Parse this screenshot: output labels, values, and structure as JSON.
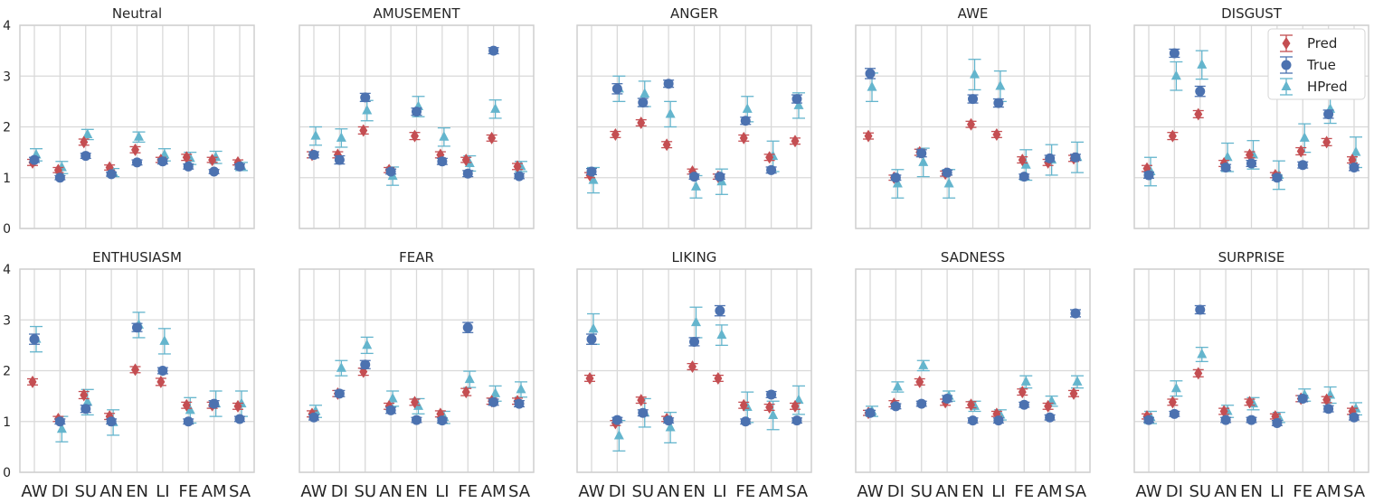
{
  "chart_data": {
    "type": "scatter",
    "layout": "2x5 grid of error-bar panels",
    "categories": [
      "AW",
      "DI",
      "SU",
      "AN",
      "EN",
      "LI",
      "FE",
      "AM",
      "SA"
    ],
    "ylim": [
      0,
      4
    ],
    "yticks": [
      0,
      1,
      2,
      3,
      4
    ],
    "grid": true,
    "legend": {
      "placement": "top-right",
      "panel": "DISGUST",
      "entries": [
        "Pred",
        "True",
        "HPred"
      ]
    },
    "series_style": {
      "Pred": {
        "color": "#c44e52",
        "marker": "diamond"
      },
      "True": {
        "color": "#4c72b0",
        "marker": "circle"
      },
      "HPred": {
        "color": "#64b5cd",
        "marker": "triangle"
      }
    },
    "panels": [
      {
        "title": "Neutral",
        "series": [
          {
            "name": "Pred",
            "values": [
              1.3,
              1.15,
              1.7,
              1.2,
              1.55,
              1.35,
              1.4,
              1.35,
              1.3
            ],
            "errors": [
              0.06,
              0.05,
              0.06,
              0.05,
              0.06,
              0.05,
              0.06,
              0.05,
              0.05
            ]
          },
          {
            "name": "True",
            "values": [
              1.35,
              1.0,
              1.43,
              1.07,
              1.3,
              1.32,
              1.22,
              1.12,
              1.22
            ],
            "errors": [
              0.05,
              0.04,
              0.05,
              0.04,
              0.05,
              0.05,
              0.05,
              0.04,
              0.05
            ]
          },
          {
            "name": "HPred",
            "values": [
              1.45,
              1.2,
              1.85,
              1.1,
              1.8,
              1.45,
              1.38,
              1.4,
              1.22
            ],
            "errors": [
              0.12,
              0.12,
              0.1,
              0.08,
              0.1,
              0.12,
              0.12,
              0.12,
              0.08
            ]
          }
        ]
      },
      {
        "title": "AMUSEMENT",
        "series": [
          {
            "name": "Pred",
            "values": [
              1.45,
              1.45,
              1.93,
              1.15,
              1.82,
              1.45,
              1.35,
              1.78,
              1.22
            ],
            "errors": [
              0.06,
              0.06,
              0.07,
              0.05,
              0.07,
              0.06,
              0.05,
              0.06,
              0.06
            ]
          },
          {
            "name": "True",
            "values": [
              1.45,
              1.35,
              2.58,
              1.12,
              2.3,
              1.32,
              1.08,
              3.5,
              1.03
            ],
            "errors": [
              0.06,
              0.08,
              0.08,
              0.05,
              0.07,
              0.06,
              0.06,
              0.06,
              0.05
            ]
          },
          {
            "name": "HPred",
            "values": [
              1.82,
              1.78,
              2.32,
              1.03,
              2.4,
              1.8,
              1.28,
              2.35,
              1.22
            ],
            "errors": [
              0.18,
              0.18,
              0.2,
              0.18,
              0.2,
              0.18,
              0.15,
              0.18,
              0.1
            ]
          }
        ]
      },
      {
        "title": "ANGER",
        "series": [
          {
            "name": "Pred",
            "values": [
              1.05,
              1.85,
              2.08,
              1.65,
              1.12,
              1.02,
              1.78,
              1.4,
              1.72
            ],
            "errors": [
              0.05,
              0.06,
              0.06,
              0.06,
              0.05,
              0.05,
              0.06,
              0.06,
              0.06
            ]
          },
          {
            "name": "True",
            "values": [
              1.12,
              2.75,
              2.48,
              2.85,
              1.02,
              1.02,
              2.12,
              1.15,
              2.55
            ],
            "errors": [
              0.06,
              0.1,
              0.08,
              0.07,
              0.05,
              0.05,
              0.07,
              0.06,
              0.08
            ]
          },
          {
            "name": "HPred",
            "values": [
              0.95,
              2.75,
              2.65,
              2.25,
              0.82,
              0.92,
              2.35,
              1.42,
              2.42
            ],
            "errors": [
              0.25,
              0.25,
              0.25,
              0.25,
              0.22,
              0.25,
              0.25,
              0.3,
              0.25
            ]
          }
        ]
      },
      {
        "title": "AWE",
        "series": [
          {
            "name": "Pred",
            "values": [
              1.82,
              1.0,
              1.5,
              1.08,
              2.05,
              1.85,
              1.35,
              1.3,
              1.38
            ],
            "errors": [
              0.06,
              0.05,
              0.06,
              0.05,
              0.06,
              0.06,
              0.06,
              0.06,
              0.06
            ]
          },
          {
            "name": "True",
            "values": [
              3.05,
              1.0,
              1.48,
              1.1,
              2.55,
              2.47,
              1.02,
              1.38,
              1.4
            ],
            "errors": [
              0.1,
              0.05,
              0.07,
              0.05,
              0.08,
              0.08,
              0.05,
              0.06,
              0.06
            ]
          },
          {
            "name": "HPred",
            "values": [
              2.78,
              0.88,
              1.3,
              0.88,
              3.03,
              2.8,
              1.25,
              1.35,
              1.4
            ],
            "errors": [
              0.28,
              0.28,
              0.28,
              0.28,
              0.3,
              0.3,
              0.3,
              0.3,
              0.3
            ]
          }
        ]
      },
      {
        "title": "DISGUST",
        "series": [
          {
            "name": "Pred",
            "values": [
              1.18,
              1.82,
              2.25,
              1.28,
              1.45,
              1.05,
              1.52,
              1.7,
              1.35
            ],
            "errors": [
              0.06,
              0.07,
              0.07,
              0.06,
              0.06,
              0.05,
              0.07,
              0.07,
              0.06
            ]
          },
          {
            "name": "True",
            "values": [
              1.05,
              3.45,
              2.7,
              1.2,
              1.28,
              1.0,
              1.25,
              2.25,
              1.2
            ],
            "errors": [
              0.06,
              0.08,
              0.1,
              0.06,
              0.06,
              0.05,
              0.06,
              0.08,
              0.06
            ]
          },
          {
            "name": "HPred",
            "values": [
              1.12,
              3.0,
              3.22,
              1.4,
              1.45,
              1.05,
              1.78,
              2.35,
              1.5
            ],
            "errors": [
              0.28,
              0.28,
              0.28,
              0.28,
              0.28,
              0.28,
              0.28,
              0.28,
              0.3
            ]
          }
        ]
      },
      {
        "title": "ENTHUSIASM",
        "series": [
          {
            "name": "Pred",
            "values": [
              1.78,
              1.05,
              1.52,
              1.1,
              2.02,
              1.78,
              1.32,
              1.32,
              1.3
            ],
            "errors": [
              0.06,
              0.05,
              0.07,
              0.06,
              0.06,
              0.07,
              0.06,
              0.06,
              0.06
            ]
          },
          {
            "name": "True",
            "values": [
              2.62,
              1.0,
              1.25,
              1.0,
              2.85,
              2.0,
              1.0,
              1.35,
              1.05
            ],
            "errors": [
              0.1,
              0.05,
              0.07,
              0.05,
              0.08,
              0.06,
              0.05,
              0.06,
              0.05
            ]
          },
          {
            "name": "HPred",
            "values": [
              2.62,
              0.85,
              1.38,
              0.98,
              2.9,
              2.58,
              1.22,
              1.35,
              1.35
            ],
            "errors": [
              0.25,
              0.25,
              0.25,
              0.25,
              0.25,
              0.25,
              0.25,
              0.25,
              0.25
            ]
          }
        ]
      },
      {
        "title": "FEAR",
        "series": [
          {
            "name": "Pred",
            "values": [
              1.15,
              1.55,
              1.98,
              1.3,
              1.38,
              1.15,
              1.58,
              1.4,
              1.4
            ],
            "errors": [
              0.06,
              0.06,
              0.07,
              0.06,
              0.06,
              0.06,
              0.07,
              0.06,
              0.06
            ]
          },
          {
            "name": "True",
            "values": [
              1.08,
              1.55,
              2.12,
              1.22,
              1.03,
              1.02,
              2.85,
              1.38,
              1.35
            ],
            "errors": [
              0.05,
              0.06,
              0.08,
              0.06,
              0.05,
              0.05,
              0.1,
              0.06,
              0.06
            ]
          },
          {
            "name": "HPred",
            "values": [
              1.2,
              2.05,
              2.5,
              1.45,
              1.3,
              1.08,
              1.83,
              1.55,
              1.63
            ],
            "errors": [
              0.12,
              0.15,
              0.16,
              0.15,
              0.15,
              0.12,
              0.16,
              0.15,
              0.15
            ]
          }
        ]
      },
      {
        "title": "LIKING",
        "series": [
          {
            "name": "Pred",
            "values": [
              1.85,
              0.97,
              1.42,
              1.05,
              2.08,
              1.85,
              1.32,
              1.28,
              1.3
            ],
            "errors": [
              0.06,
              0.05,
              0.06,
              0.05,
              0.06,
              0.06,
              0.06,
              0.06,
              0.06
            ]
          },
          {
            "name": "True",
            "values": [
              2.62,
              1.03,
              1.17,
              1.02,
              2.57,
              3.18,
              1.0,
              1.53,
              1.02
            ],
            "errors": [
              0.1,
              0.05,
              0.06,
              0.05,
              0.08,
              0.1,
              0.05,
              0.06,
              0.05
            ]
          },
          {
            "name": "HPred",
            "values": [
              2.82,
              0.72,
              1.17,
              0.88,
              2.95,
              2.7,
              1.28,
              1.12,
              1.42
            ],
            "errors": [
              0.3,
              0.3,
              0.28,
              0.3,
              0.3,
              0.2,
              0.3,
              0.28,
              0.28
            ]
          }
        ]
      },
      {
        "title": "SADNESS",
        "series": [
          {
            "name": "Pred",
            "values": [
              1.17,
              1.35,
              1.78,
              1.38,
              1.33,
              1.15,
              1.58,
              1.3,
              1.55
            ],
            "errors": [
              0.05,
              0.06,
              0.06,
              0.06,
              0.06,
              0.05,
              0.06,
              0.06,
              0.06
            ]
          },
          {
            "name": "True",
            "values": [
              1.17,
              1.3,
              1.35,
              1.45,
              1.02,
              1.02,
              1.33,
              1.08,
              3.13
            ],
            "errors": [
              0.05,
              0.05,
              0.05,
              0.06,
              0.05,
              0.05,
              0.05,
              0.05,
              0.07
            ]
          },
          {
            "name": "HPred",
            "values": [
              1.2,
              1.68,
              2.1,
              1.5,
              1.3,
              1.13,
              1.78,
              1.4,
              1.78
            ],
            "errors": [
              0.1,
              0.1,
              0.1,
              0.1,
              0.1,
              0.1,
              0.12,
              0.1,
              0.12
            ]
          }
        ]
      },
      {
        "title": "SURPRISE",
        "series": [
          {
            "name": "Pred",
            "values": [
              1.1,
              1.38,
              1.95,
              1.2,
              1.38,
              1.1,
              1.45,
              1.43,
              1.2
            ],
            "errors": [
              0.05,
              0.06,
              0.07,
              0.06,
              0.06,
              0.05,
              0.06,
              0.06,
              0.06
            ]
          },
          {
            "name": "True",
            "values": [
              1.03,
              1.15,
              3.2,
              1.03,
              1.03,
              0.97,
              1.45,
              1.25,
              1.08
            ],
            "errors": [
              0.05,
              0.05,
              0.08,
              0.05,
              0.05,
              0.05,
              0.06,
              0.06,
              0.05
            ]
          },
          {
            "name": "HPred",
            "values": [
              1.08,
              1.65,
              2.32,
              1.2,
              1.35,
              1.08,
              1.52,
              1.52,
              1.25
            ],
            "errors": [
              0.12,
              0.15,
              0.14,
              0.12,
              0.12,
              0.1,
              0.12,
              0.16,
              0.12
            ]
          }
        ]
      }
    ]
  }
}
